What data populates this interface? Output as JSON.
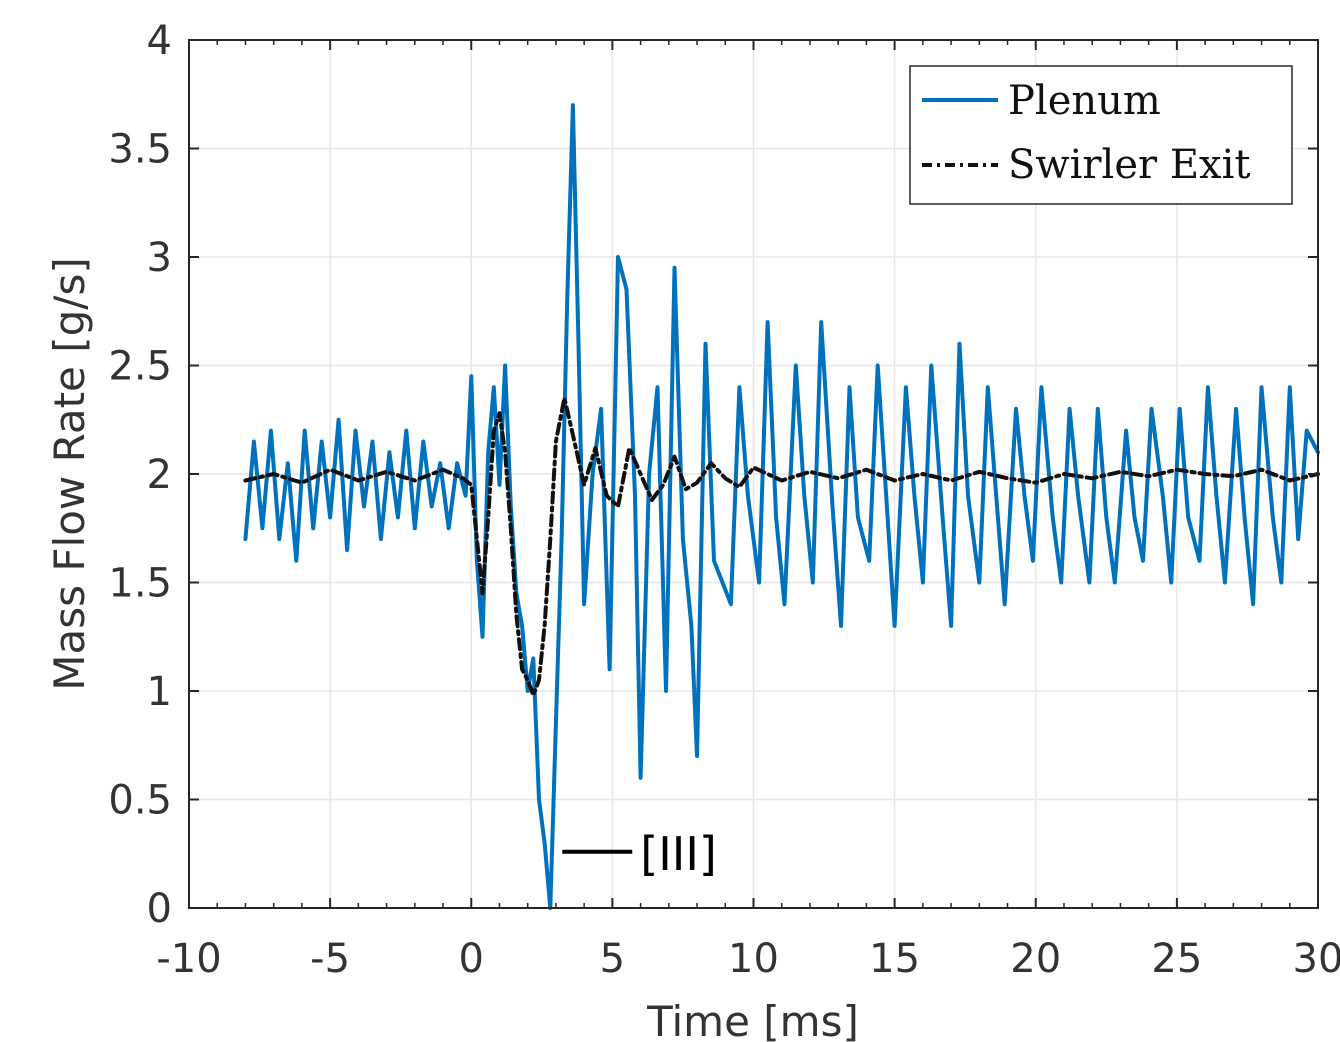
{
  "chart_data": {
    "type": "line",
    "title": "",
    "xlabel": "Time [ms]",
    "ylabel": "Mass Flow Rate [g/s]",
    "xlim": [
      -10,
      30
    ],
    "ylim": [
      0,
      4
    ],
    "xticks": [
      -10,
      -5,
      0,
      5,
      10,
      15,
      20,
      25,
      30
    ],
    "xtick_labels": [
      "-10",
      "-5",
      "0",
      "5",
      "10",
      "15",
      "20",
      "25",
      "30"
    ],
    "yticks": [
      0,
      0.5,
      1,
      1.5,
      2,
      2.5,
      3,
      3.5,
      4
    ],
    "ytick_labels": [
      "0",
      "0.5",
      "1",
      "1.5",
      "2",
      "2.5",
      "3",
      "3.5",
      "4"
    ],
    "grid": true,
    "legend_position": "top-right",
    "series": [
      {
        "name": "Plenum",
        "color": "#0072BD",
        "style": "solid",
        "x": [
          -8.0,
          -7.7,
          -7.4,
          -7.1,
          -6.8,
          -6.5,
          -6.2,
          -5.9,
          -5.6,
          -5.3,
          -5.0,
          -4.7,
          -4.4,
          -4.1,
          -3.8,
          -3.5,
          -3.2,
          -2.9,
          -2.6,
          -2.3,
          -2.0,
          -1.7,
          -1.4,
          -1.1,
          -0.8,
          -0.5,
          -0.2,
          0.0,
          0.2,
          0.4,
          0.6,
          0.8,
          1.0,
          1.2,
          1.4,
          1.6,
          1.8,
          2.0,
          2.2,
          2.4,
          2.6,
          2.8,
          3.0,
          3.2,
          3.4,
          3.6,
          3.8,
          4.0,
          4.3,
          4.6,
          4.9,
          5.2,
          5.5,
          5.8,
          6.0,
          6.3,
          6.6,
          6.9,
          7.2,
          7.5,
          7.8,
          8.0,
          8.3,
          8.6,
          8.9,
          9.2,
          9.5,
          9.8,
          10.2,
          10.5,
          10.8,
          11.1,
          11.5,
          11.8,
          12.1,
          12.4,
          12.8,
          13.1,
          13.4,
          13.7,
          14.1,
          14.4,
          14.7,
          15.0,
          15.4,
          15.7,
          16.0,
          16.3,
          16.7,
          17.0,
          17.3,
          17.6,
          18.0,
          18.3,
          18.6,
          18.9,
          19.3,
          19.6,
          19.9,
          20.2,
          20.6,
          20.9,
          21.2,
          21.5,
          21.9,
          22.2,
          22.5,
          22.8,
          23.2,
          23.5,
          23.8,
          24.1,
          24.5,
          24.8,
          25.1,
          25.4,
          25.8,
          26.1,
          26.4,
          26.7,
          27.1,
          27.4,
          27.7,
          28.0,
          28.4,
          28.7,
          29.0,
          29.3,
          29.6,
          30.0
        ],
        "y": [
          1.7,
          2.15,
          1.75,
          2.2,
          1.7,
          2.05,
          1.6,
          2.2,
          1.75,
          2.15,
          1.8,
          2.25,
          1.65,
          2.2,
          1.85,
          2.15,
          1.7,
          2.1,
          1.8,
          2.2,
          1.75,
          2.15,
          1.85,
          2.05,
          1.75,
          2.05,
          1.9,
          2.45,
          1.6,
          1.25,
          2.1,
          2.4,
          1.95,
          2.5,
          1.85,
          1.45,
          1.3,
          1.0,
          1.15,
          0.5,
          0.3,
          0.0,
          0.85,
          1.7,
          2.8,
          3.7,
          2.6,
          1.4,
          2.0,
          2.3,
          1.1,
          3.0,
          2.85,
          1.9,
          0.6,
          2.0,
          2.4,
          1.0,
          2.95,
          1.7,
          1.3,
          0.7,
          2.6,
          1.6,
          1.5,
          1.4,
          2.4,
          1.9,
          1.5,
          2.7,
          1.8,
          1.4,
          2.5,
          1.9,
          1.5,
          2.7,
          1.85,
          1.3,
          2.4,
          1.8,
          1.6,
          2.5,
          1.9,
          1.3,
          2.4,
          1.9,
          1.5,
          2.5,
          1.8,
          1.3,
          2.6,
          1.9,
          1.5,
          2.4,
          1.9,
          1.4,
          2.3,
          1.9,
          1.6,
          2.4,
          1.8,
          1.5,
          2.3,
          1.9,
          1.5,
          2.3,
          1.8,
          1.5,
          2.2,
          1.8,
          1.6,
          2.3,
          1.9,
          1.5,
          2.3,
          1.8,
          1.6,
          2.4,
          1.9,
          1.5,
          2.3,
          1.8,
          1.4,
          2.4,
          1.8,
          1.5,
          2.4,
          1.7,
          2.2,
          2.1
        ]
      },
      {
        "name": "Swirler Exit",
        "color": "#111111",
        "style": "dash-dot",
        "x": [
          -8.0,
          -7.0,
          -6.0,
          -5.0,
          -4.0,
          -3.0,
          -2.0,
          -1.0,
          -0.3,
          0.0,
          0.2,
          0.4,
          0.6,
          0.8,
          1.0,
          1.2,
          1.4,
          1.6,
          1.8,
          2.0,
          2.2,
          2.4,
          2.6,
          2.8,
          3.0,
          3.3,
          3.6,
          4.0,
          4.4,
          4.8,
          5.2,
          5.6,
          6.0,
          6.4,
          6.8,
          7.2,
          7.6,
          8.0,
          8.5,
          9.0,
          9.5,
          10.0,
          11.0,
          12.0,
          13.0,
          14.0,
          15.0,
          16.0,
          17.0,
          18.0,
          19.0,
          20.0,
          21.0,
          22.0,
          23.0,
          24.0,
          25.0,
          26.0,
          27.0,
          28.0,
          29.0,
          30.0
        ],
        "y": [
          1.97,
          2.0,
          1.96,
          2.02,
          1.97,
          2.01,
          1.97,
          2.02,
          1.98,
          1.95,
          1.7,
          1.45,
          1.8,
          2.2,
          2.28,
          2.1,
          1.75,
          1.35,
          1.1,
          1.05,
          0.98,
          1.05,
          1.3,
          1.7,
          2.15,
          2.35,
          2.18,
          1.95,
          2.12,
          1.9,
          1.85,
          2.12,
          2.0,
          1.88,
          1.95,
          2.08,
          1.93,
          1.96,
          2.05,
          1.98,
          1.94,
          2.03,
          1.97,
          2.01,
          1.98,
          2.02,
          1.97,
          2.0,
          1.97,
          2.01,
          1.98,
          1.96,
          2.0,
          1.98,
          2.01,
          1.99,
          2.02,
          2.0,
          1.99,
          2.02,
          1.97,
          2.0
        ]
      }
    ],
    "annotations": [
      {
        "text": "[III]",
        "x": 2.8,
        "y": 0.25
      }
    ]
  }
}
